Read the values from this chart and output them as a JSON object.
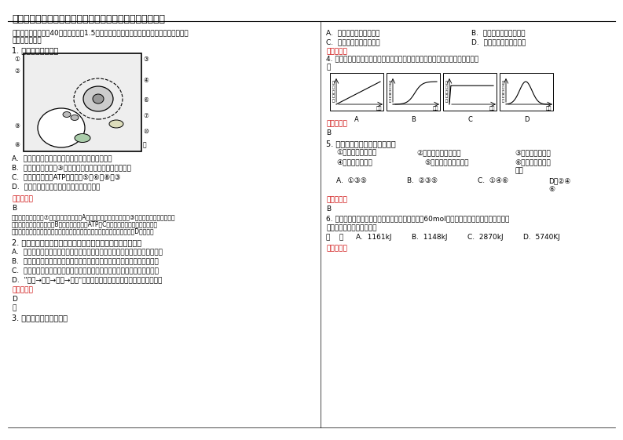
{
  "title": "四川省成都市崇州崇庆中学高二生物上学期期末试题含解析",
  "bg_color": "#ffffff",
  "text_color": "#000000",
  "q1_options": [
    "A.  该图为光学显微镜下所观察到的动物细胞结构图",
    "B.  外界溶液浓度大于③内液体浓度时，可发生质壁分离现象",
    "C.  该细胞中能产生ATP的部位是⑤、⑥、⑧和③",
    "D.  该细胞可能取自茎尖分生区或根尖成熟区"
  ],
  "q1_ans": "B",
  "q1_exp_lines": [
    "光学显微镜下看不到⑦线粒体等细微结构，A项错误；外界溶液浓度大于③液泡内液体浓度时，细胞",
    "失水，发生质壁分离现象，B项正确；不会产生ATP，C项错误；图示细胞含有叶绿体和",
    "大液泡，茎尖分生区细胞没有叶绿体和大液泡，根尖成熟区细胞没有叶绿体，D项错误。"
  ],
  "q2_options": [
    "A.  物质是能量的载体，能量是物质在生态群落和无机环境之间循环流动的动力",
    "B.  人们可以通过调整使生态系统中能量持续高效的流向对人类最有益的部分",
    "C.  所有消费者和分解者同化的总能量一定小于所有生产者固定的太阳能总量",
    "D.  \"原料→产品→副料→产品\"的生产模式能够实现物质和能量的循环利用"
  ],
  "q2_ans": "D",
  "q3_right_opts": [
    "A.  一个公园内所有的树木",
    "B.  一块草地上所有的昆虫",
    "C.  一个池塘内所有的鱼类",
    "D.  一座山上所有的马尾松"
  ],
  "q4_ans": "B",
  "q5_ans": "B",
  "q6_options": [
    "A.  1161kJ",
    "B.  1148kJ",
    "C.  2870kJ",
    "D.  5740KJ"
  ]
}
